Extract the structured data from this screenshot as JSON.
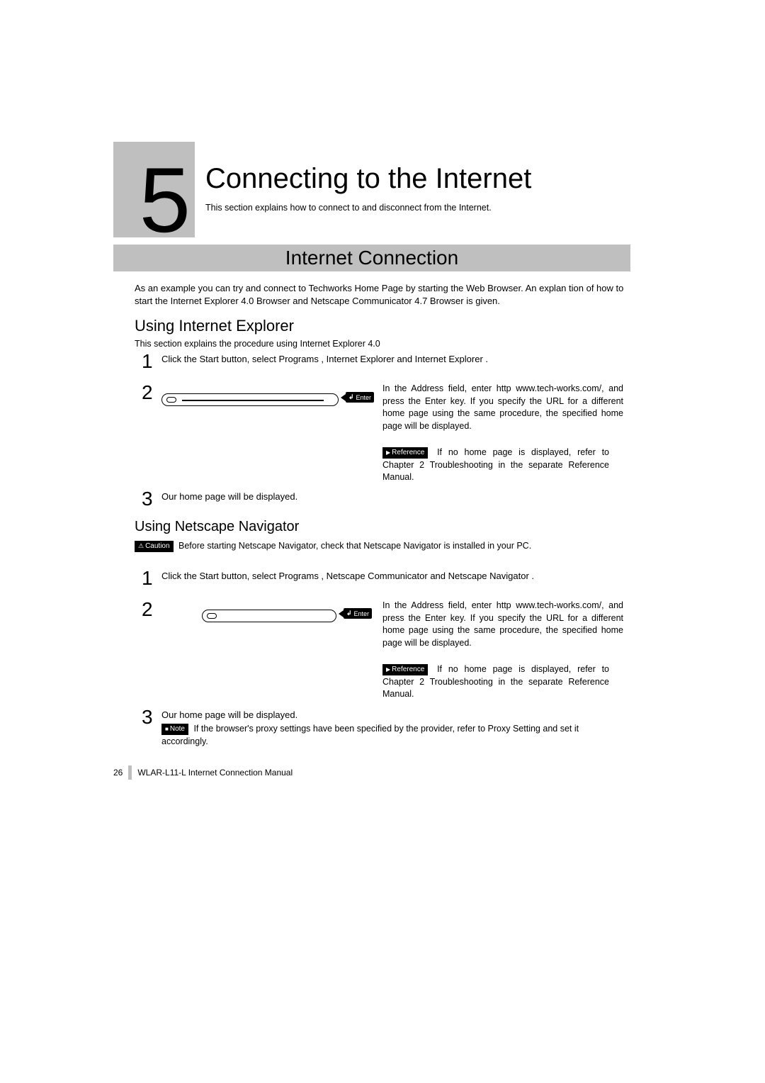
{
  "chapter": {
    "number": "5",
    "title": "Connecting to the Internet",
    "subtitle": "This section explains how to connect to and disconnect from the Internet."
  },
  "section_bar": "Internet Connection",
  "intro": "As an example you can try and connect to Techworks Home Page by starting the Web Browser. An explan tion of how to start the Internet Explorer 4.0 Browser and Netscape Communicator 4.7 Browser is given.",
  "ie": {
    "heading": "Using Internet Explorer",
    "sub": "This section explains the procedure using Internet Explorer 4.0",
    "step1_num": "1",
    "step1": "Click the Start button, select Programs , Internet Explorer  and Internet Explorer .",
    "step2_num": "2",
    "step2_right": "In the Address field, enter http www.tech-works.com/, and press the Enter key. If you specify the URL for a different home page using the same procedure, the specified home page will be displayed.",
    "ref_label": "Reference",
    "ref": " If no home page is displayed, refer to Chapter 2 Troubleshooting in the separate Reference Manual.",
    "step3_num": "3",
    "step3": "Our home page will be displayed.",
    "enter_label": "Enter"
  },
  "nn": {
    "heading": "Using Netscape Navigator",
    "caution_label": "Caution",
    "caution": " Before starting Netscape Navigator, check that Netscape Navigator is installed in your PC.",
    "step1_num": "1",
    "step1": "Click the Start button, select Programs , Netscape Communicator  and Netscape Navigator .",
    "step2_num": "2",
    "step2_right": "In the Address field, enter http www.tech-works.com/, and press the Enter key. If you specify the URL for a different home page using the same procedure, the specified home page will be displayed.",
    "ref_label": "Reference",
    "ref": " If no home page is displayed, refer to Chapter 2 Troubleshooting in the separate Reference Manual.",
    "step3_num": "3",
    "step3": "Our home page will be displayed.",
    "note_label": "Note",
    "note": " If the browser's proxy settings have been specified by the provider, refer to Proxy Setting and set it accordingly.",
    "enter_label": "Enter"
  },
  "footer": {
    "page": "26",
    "title": "WLAR-L11-L Internet Connection Manual"
  },
  "colors": {
    "gray_box": "#bfbfbf",
    "text": "#000000",
    "bg": "#ffffff"
  }
}
